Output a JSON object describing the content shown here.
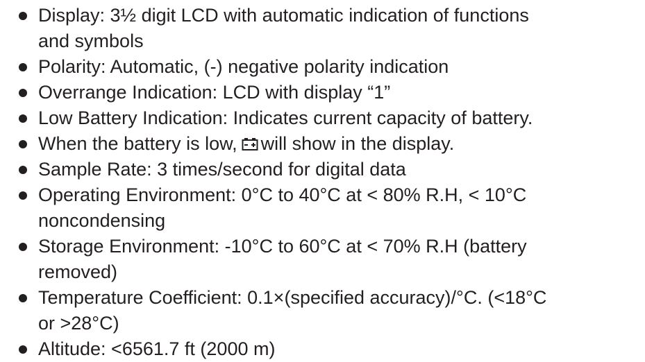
{
  "list": {
    "items": [
      {
        "lines": [
          "Display: 3½ digit LCD with automatic indication of functions",
          "and symbols"
        ]
      },
      {
        "lines": [
          "Polarity: Automatic, (-) negative polarity indication"
        ]
      },
      {
        "lines": [
          "Overrange Indication: LCD with display “1”"
        ]
      },
      {
        "lines": [
          "Low Battery Indication: Indicates current capacity of battery."
        ]
      },
      {
        "parts": [
          "When the battery is low,",
          "will show in the display."
        ]
      },
      {
        "lines": [
          "Sample Rate: 3 times/second for digital data"
        ]
      },
      {
        "lines": [
          "Operating Environment: 0°C to 40°C at < 80% R.H, < 10°C",
          "noncondensing"
        ]
      },
      {
        "lines": [
          "Storage Environment: -10°C to 60°C at < 70% R.H (battery",
          "removed)"
        ]
      },
      {
        "lines": [
          "Temperature Coefficient: 0.1×(specified accuracy)/°C. (<18°C",
          "or >28°C)"
        ]
      },
      {
        "lines": [
          "Altitude: <6561.7 ft (2000 m)"
        ]
      }
    ]
  }
}
